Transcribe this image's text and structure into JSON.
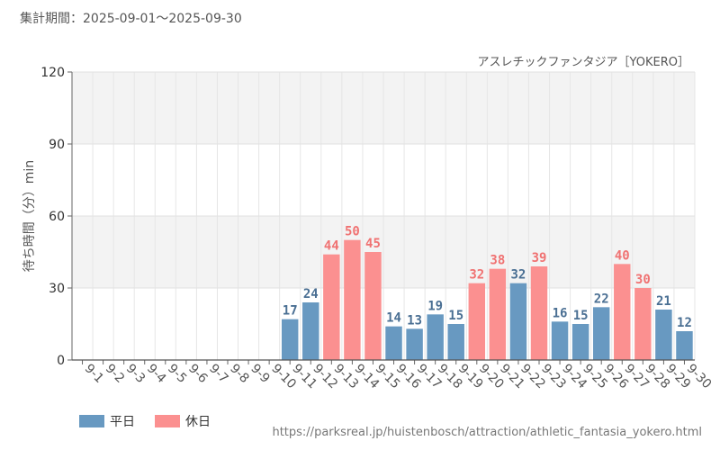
{
  "header": {
    "period": "集計期間：2025-09-01～2025-09-30",
    "subtitle": "アスレチックファンタジア［YOKERO］"
  },
  "footer": {
    "source": "https://parksreal.jp/huistenbosch/attraction/athletic_fantasia_yokero.html"
  },
  "legend": {
    "weekday": "平日",
    "holiday": "休日"
  },
  "colors": {
    "weekday": "#6899c1",
    "holiday": "#fb9090",
    "weekday_label": "#4a6f93",
    "holiday_label": "#f07272"
  },
  "chart_data": {
    "type": "bar",
    "ylabel": "待ち時間（分）min",
    "ylim": [
      0,
      120
    ],
    "yticks": [
      0,
      30,
      60,
      90,
      120
    ],
    "grid": true,
    "legend_position": "bottom-left",
    "categories": [
      "9-1",
      "9-2",
      "9-3",
      "9-4",
      "9-5",
      "9-6",
      "9-7",
      "9-8",
      "9-9",
      "9-10",
      "9-11",
      "9-12",
      "9-13",
      "9-14",
      "9-15",
      "9-16",
      "9-17",
      "9-18",
      "9-19",
      "9-20",
      "9-21",
      "9-22",
      "9-23",
      "9-24",
      "9-25",
      "9-26",
      "9-27",
      "9-28",
      "9-29",
      "9-30"
    ],
    "day_type": [
      "weekday",
      "weekday",
      "weekday",
      "weekday",
      "weekday",
      "holiday",
      "holiday",
      "weekday",
      "weekday",
      "weekday",
      "weekday",
      "weekday",
      "holiday",
      "holiday",
      "holiday",
      "weekday",
      "weekday",
      "weekday",
      "weekday",
      "holiday",
      "holiday",
      "weekday",
      "holiday",
      "weekday",
      "weekday",
      "weekday",
      "holiday",
      "holiday",
      "weekday",
      "weekday"
    ],
    "values": [
      null,
      null,
      null,
      null,
      null,
      null,
      null,
      null,
      null,
      null,
      17,
      24,
      44,
      50,
      45,
      14,
      13,
      19,
      15,
      32,
      38,
      32,
      39,
      16,
      15,
      22,
      40,
      30,
      21,
      12
    ]
  }
}
